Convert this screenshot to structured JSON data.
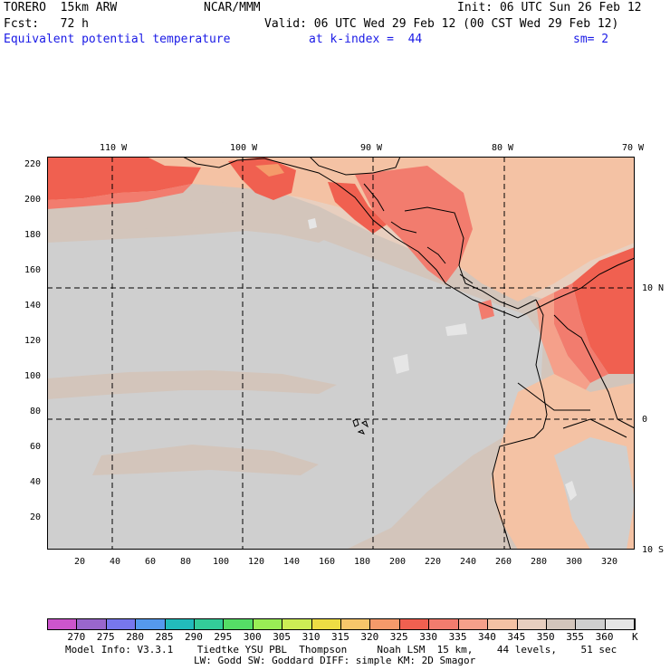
{
  "header": {
    "model": "TORERO  15km ARW",
    "org": "NCAR/MMM",
    "init": "Init: 06 UTC Sun 26 Feb 12",
    "fcst": "Fcst:   72 h",
    "valid": "Valid: 06 UTC Wed 29 Feb 12 (00 CST Wed 29 Feb 12)",
    "field": "Equivalent potential temperature",
    "level": "at k-index =  44",
    "smooth": "sm= 2"
  },
  "top_axis": {
    "labels": [
      "110 W",
      "100 W",
      "90 W",
      "80 W",
      "70 W"
    ]
  },
  "left_axis": {
    "labels": [
      "220",
      "200",
      "180",
      "160",
      "140",
      "120",
      "100",
      "80",
      "60",
      "40",
      "20"
    ]
  },
  "bottom_axis": {
    "labels": [
      "20",
      "40",
      "60",
      "80",
      "100",
      "120",
      "140",
      "160",
      "180",
      "200",
      "220",
      "240",
      "260",
      "280",
      "300",
      "320"
    ]
  },
  "right_axis": {
    "labels": [
      "10 N",
      "0",
      "10 S"
    ]
  },
  "colorbar": {
    "colors": [
      "#cc55cc",
      "#9966cc",
      "#7777ee",
      "#5599ee",
      "#22bbbb",
      "#33cc99",
      "#55dd66",
      "#99ee55",
      "#ccee55",
      "#eedd44",
      "#f7c66a",
      "#f59a6a",
      "#f06050",
      "#f27c6e",
      "#f5a08a",
      "#f4c2a4",
      "#e8cfbf",
      "#d3c5bb",
      "#cfcfcf",
      "#e6e6e6"
    ],
    "labels": [
      "270",
      "275",
      "280",
      "285",
      "290",
      "295",
      "300",
      "305",
      "310",
      "315",
      "320",
      "325",
      "330",
      "335",
      "340",
      "345",
      "350",
      "355",
      "360"
    ],
    "unit": "K"
  },
  "footer": {
    "line1": "Model Info: V3.3.1    Tiedtke YSU PBL  Thompson     Noah LSM  15 km,    44 levels,    51 sec",
    "line2": "LW: Godd SW: Goddard DIFF: simple KM: 2D Smagor"
  }
}
